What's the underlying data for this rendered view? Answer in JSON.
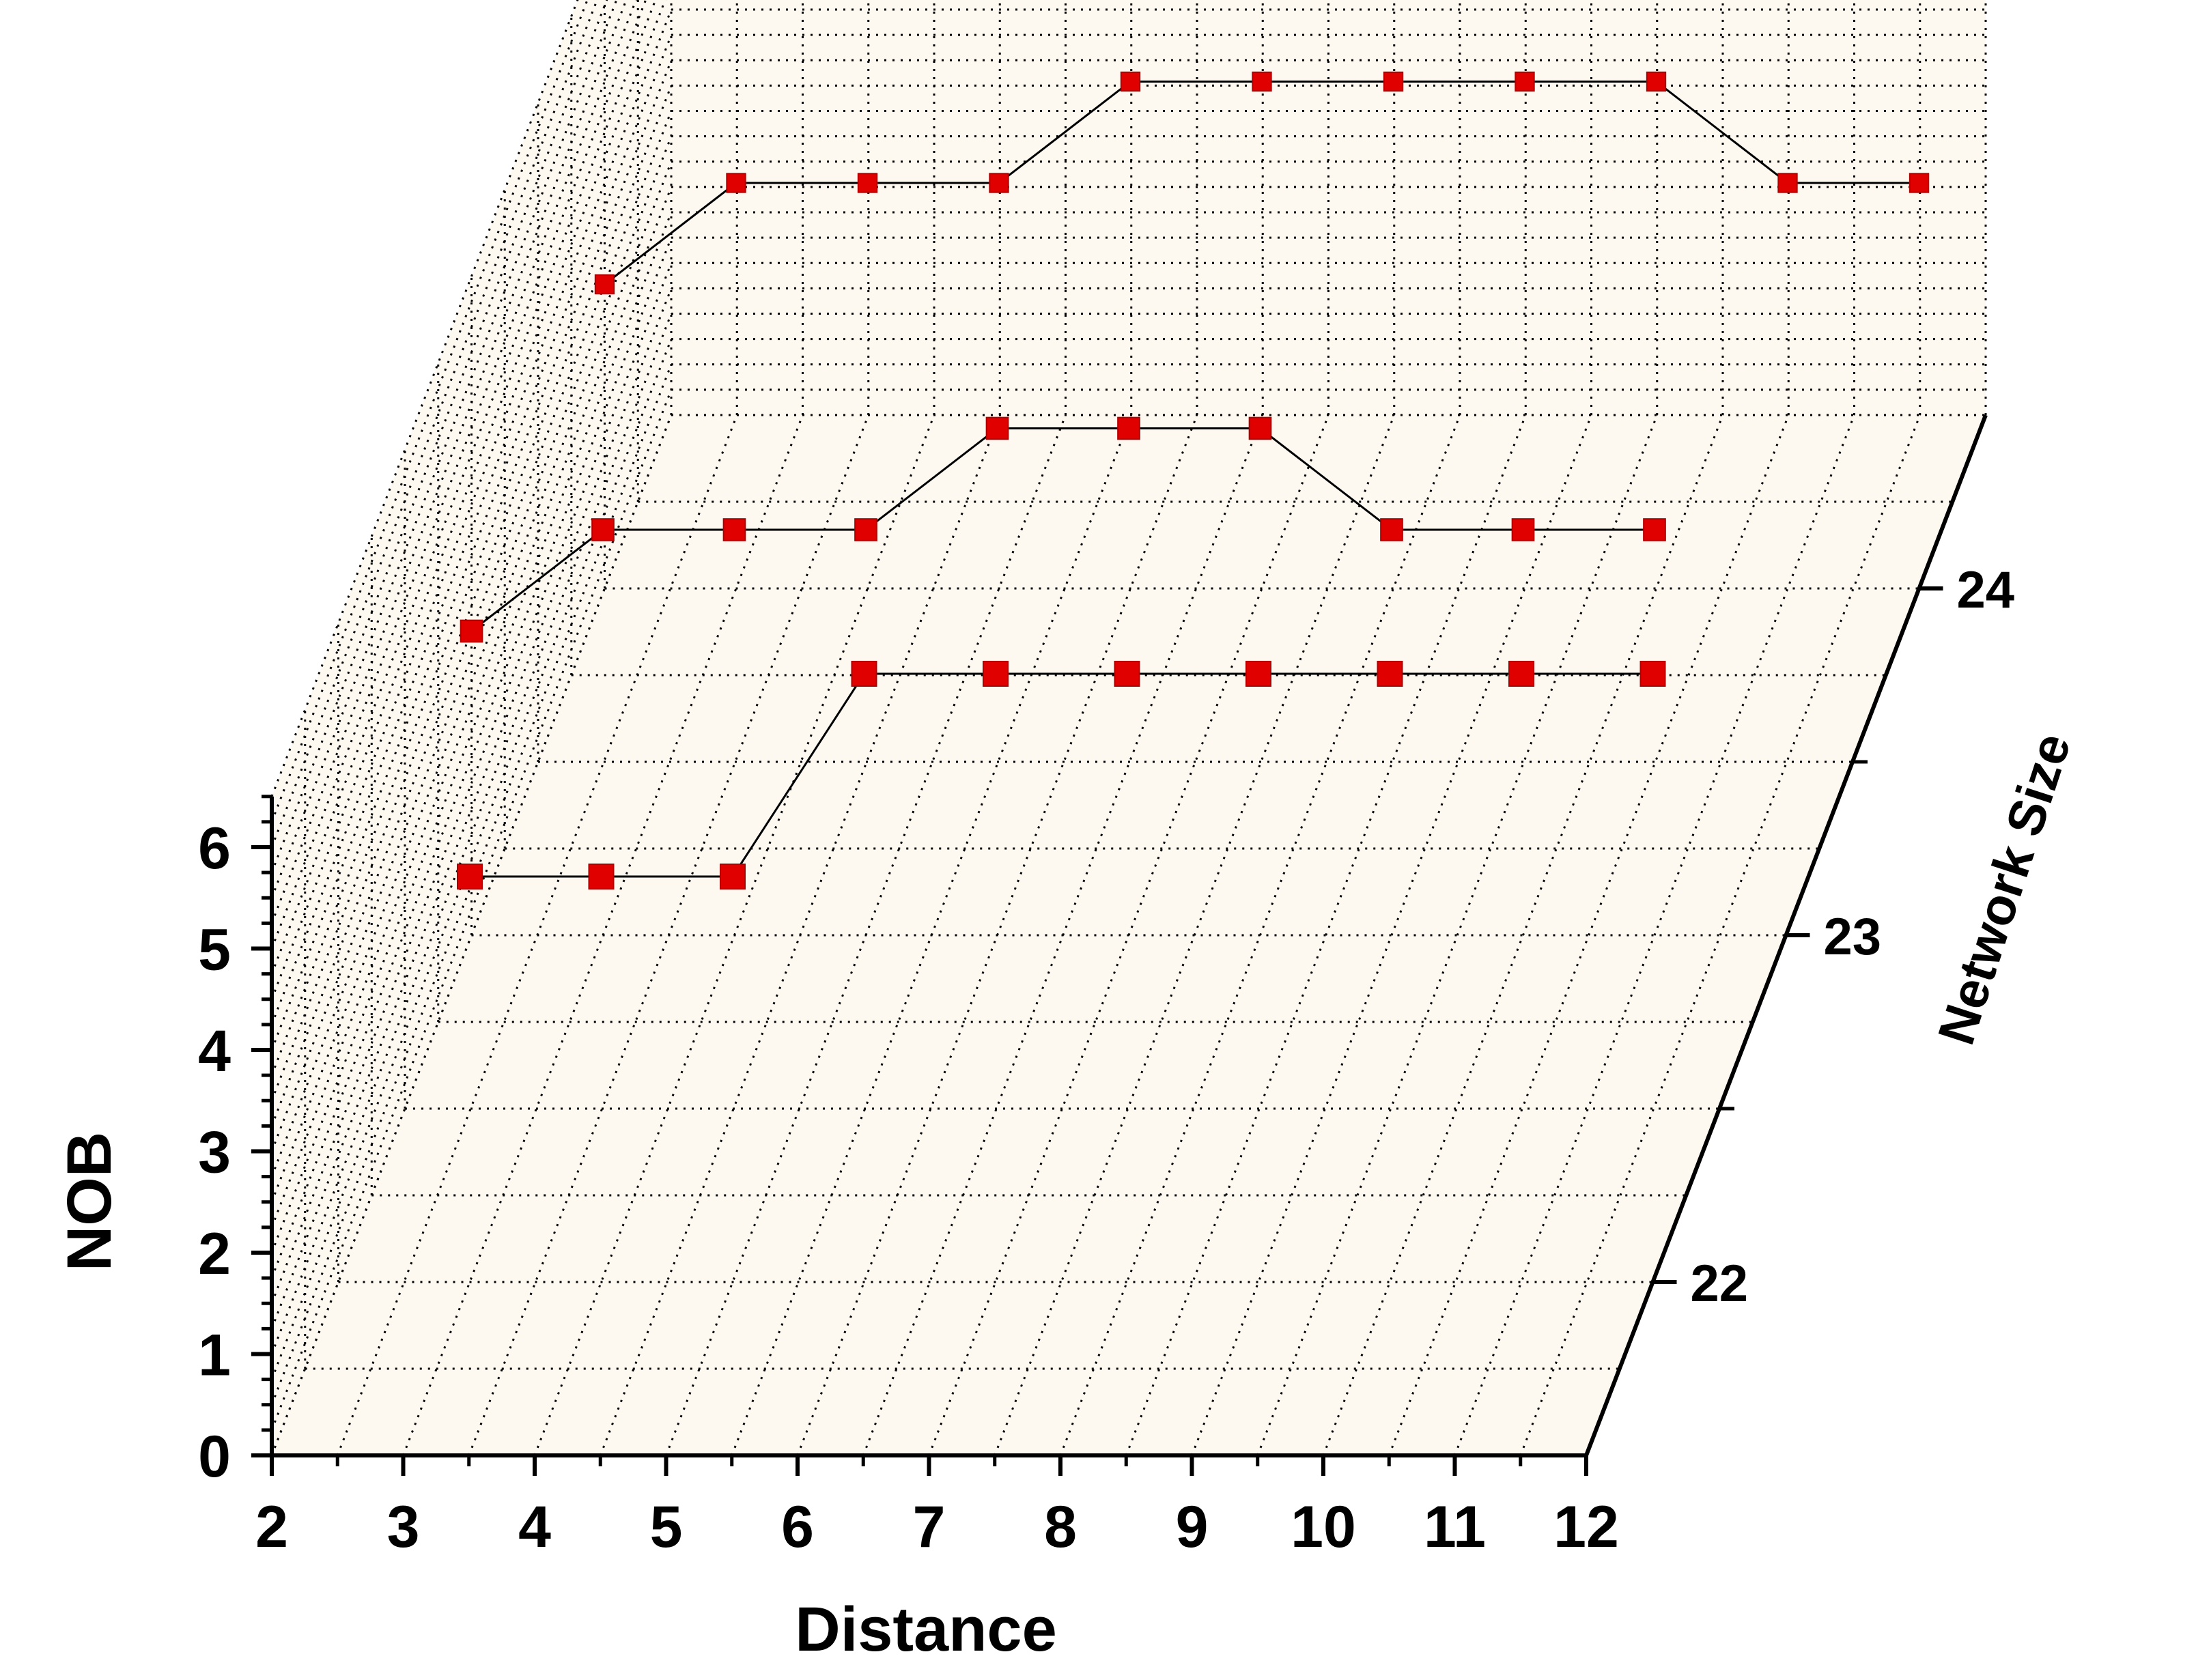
{
  "chart_data": {
    "type": "line",
    "projection": "3d",
    "title": "",
    "xlabel": "Distance",
    "ylabel": "NOB",
    "zlabel": "Network Size",
    "xlim": [
      2,
      12
    ],
    "ylim": [
      0,
      6.5
    ],
    "zlim": [
      22,
      24.5
    ],
    "x_ticks": [
      "2",
      "3",
      "4",
      "5",
      "6",
      "7",
      "8",
      "9",
      "10",
      "11",
      "12"
    ],
    "y_ticks": [
      "0",
      "1",
      "2",
      "3",
      "4",
      "5",
      "6"
    ],
    "z_ticks": [
      "22",
      "23",
      "24"
    ],
    "grid": true,
    "marker": "square",
    "colors": {
      "marker": "#e00000",
      "line": "#000000",
      "wall": "#fdf9f1",
      "grid": "#000000"
    },
    "series": [
      {
        "z": 22,
        "points": [
          [
            3,
            4
          ],
          [
            4,
            4
          ],
          [
            5,
            4
          ],
          [
            6,
            6
          ],
          [
            7,
            6
          ],
          [
            8,
            6
          ],
          [
            9,
            6
          ],
          [
            10,
            6
          ],
          [
            11,
            6
          ],
          [
            12,
            6
          ]
        ]
      },
      {
        "z": 23,
        "points": [
          [
            2,
            3
          ],
          [
            3,
            4
          ],
          [
            4,
            4
          ],
          [
            5,
            4
          ],
          [
            6,
            5
          ],
          [
            7,
            5
          ],
          [
            8,
            5
          ],
          [
            9,
            4
          ],
          [
            10,
            4
          ],
          [
            11,
            4
          ]
        ]
      },
      {
        "z": 24,
        "points": [
          [
            2,
            3
          ],
          [
            3,
            4
          ],
          [
            4,
            4
          ],
          [
            5,
            4
          ],
          [
            6,
            5
          ],
          [
            7,
            5
          ],
          [
            8,
            5
          ],
          [
            9,
            5
          ],
          [
            10,
            5
          ],
          [
            11,
            4
          ],
          [
            12,
            4
          ]
        ]
      }
    ]
  }
}
